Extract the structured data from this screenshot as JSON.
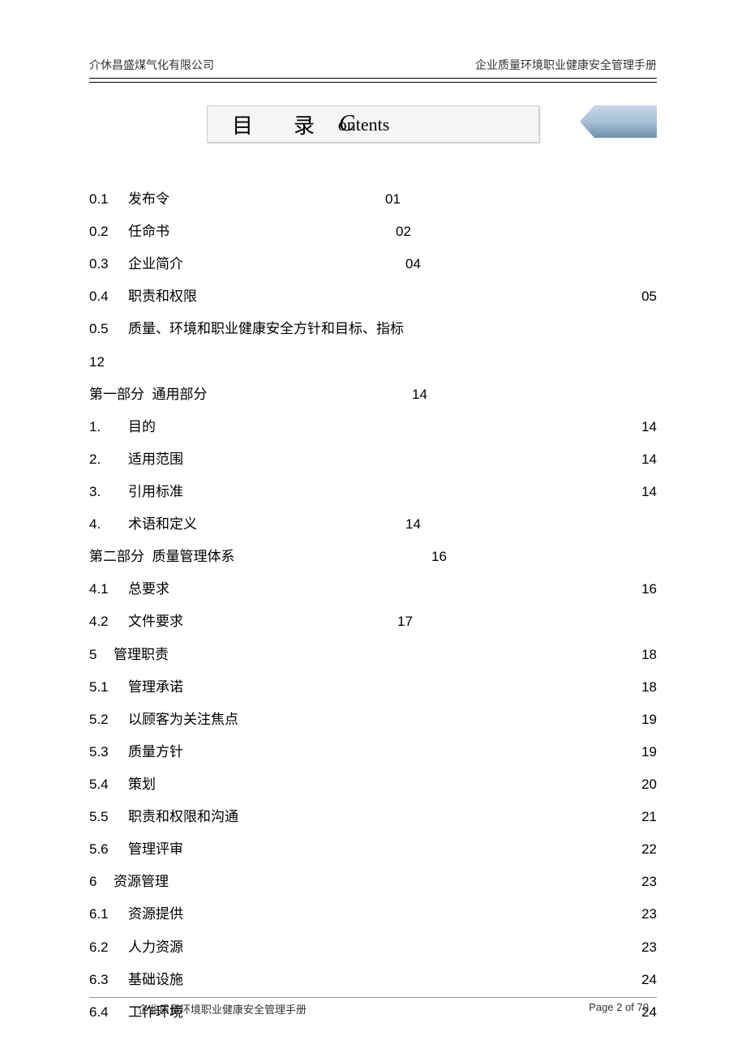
{
  "header": {
    "left": "介休昌盛煤气化有限公司",
    "right": "企业质量环境职业健康安全管理手册"
  },
  "title": {
    "cn": "目录",
    "en_first": "C",
    "en_rest": "ontents"
  },
  "toc": [
    {
      "num": "0.1",
      "title": "发布令",
      "page": "01",
      "pagepos": 495
    },
    {
      "num": "0.2",
      "title": "任命书",
      "page": "02",
      "pagepos": 508
    },
    {
      "num": "0.3",
      "title": "企业简介",
      "page": "04",
      "pagepos": 520
    },
    {
      "num": "0.4",
      "title": "职责和权限",
      "page": "05",
      "pagepos": 720
    },
    {
      "num": "0.5",
      "title": "质量、环境和职业健康安全方针和目标、指标",
      "page": "",
      "pagepos": 0
    },
    {
      "num": "12",
      "title": "",
      "page": "",
      "pagepos": 0
    },
    {
      "num": "",
      "title": "第一部分  通用部分",
      "page": "14",
      "pagepos": 528
    },
    {
      "num": "1.",
      "title": "目的",
      "page": "14",
      "pagepos": 720
    },
    {
      "num": "2.",
      "title": "适用范围",
      "page": "14",
      "pagepos": 720
    },
    {
      "num": "3.",
      "title": "引用标准",
      "page": "14",
      "pagepos": 720
    },
    {
      "num": "4.",
      "title": "术语和定义",
      "page": "14",
      "pagepos": 520
    },
    {
      "num": "",
      "title": "第二部分  质量管理体系",
      "page": "16",
      "pagepos": 552
    },
    {
      "num": "4.1",
      "title": "总要求",
      "page": "16",
      "pagepos": 720
    },
    {
      "num": "4.2",
      "title": "文件要求",
      "page": "17",
      "pagepos": 510
    },
    {
      "num": "5",
      "title": "管理职责",
      "page": "18",
      "pagepos": 720,
      "space": 18
    },
    {
      "num": "5.1",
      "title": "管理承诺",
      "page": "18",
      "pagepos": 720
    },
    {
      "num": "5.2",
      "title": "以顾客为关注焦点",
      "page": "19",
      "pagepos": 720
    },
    {
      "num": "5.3",
      "title": "质量方针",
      "page": "19",
      "pagepos": 720
    },
    {
      "num": "5.4",
      "title": "策划",
      "page": "20",
      "pagepos": 720
    },
    {
      "num": "5.5",
      "title": "职责和权限和沟通",
      "page": "21",
      "pagepos": 720
    },
    {
      "num": "5.6",
      "title": "管理评审",
      "page": "22",
      "pagepos": 720
    },
    {
      "num": "6",
      "title": "资源管理",
      "page": "23",
      "pagepos": 720,
      "space": 18
    },
    {
      "num": "6.1",
      "title": "资源提供",
      "page": "23",
      "pagepos": 720
    },
    {
      "num": "6.2",
      "title": "人力资源",
      "page": "23",
      "pagepos": 720
    },
    {
      "num": "6.3",
      "title": "基础设施",
      "page": "24",
      "pagepos": 720
    },
    {
      "num": "6.4",
      "title": "工作环境",
      "page": "24",
      "pagepos": 720
    }
  ],
  "footer": {
    "left": "企业质量环境职业健康安全管理手册",
    "right": "Page 2 of 70"
  }
}
